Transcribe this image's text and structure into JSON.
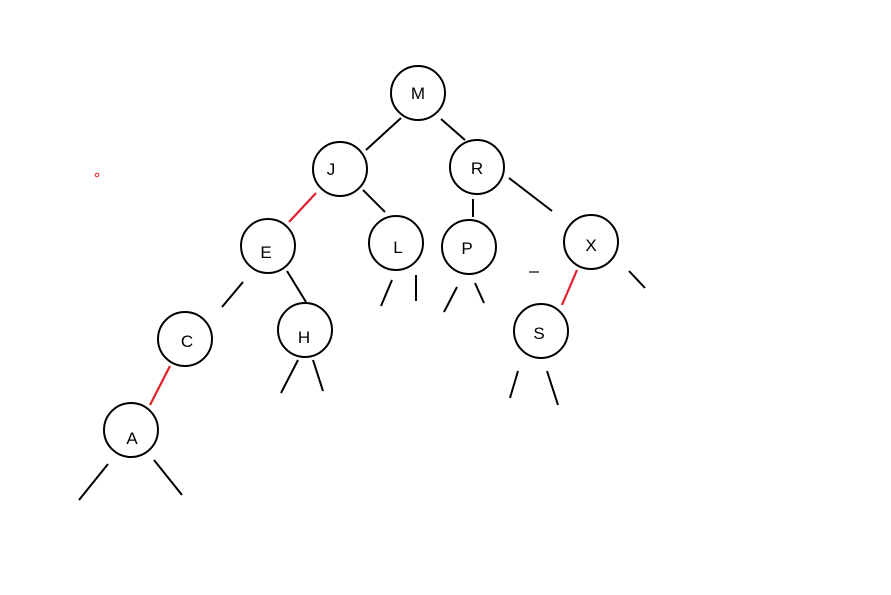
{
  "colors": {
    "background": "#ffffff",
    "black_link": "#000000",
    "red_link": "#e0202a"
  },
  "tree": {
    "nodes": [
      {
        "id": "M",
        "label": "M"
      },
      {
        "id": "J",
        "label": "J"
      },
      {
        "id": "R",
        "label": "R"
      },
      {
        "id": "E",
        "label": "E"
      },
      {
        "id": "L",
        "label": "L"
      },
      {
        "id": "P",
        "label": "P"
      },
      {
        "id": "X",
        "label": "X"
      },
      {
        "id": "C",
        "label": "C"
      },
      {
        "id": "H",
        "label": "H"
      },
      {
        "id": "S",
        "label": "S"
      },
      {
        "id": "A",
        "label": "A"
      }
    ],
    "links": [
      {
        "from": "M",
        "to": "J",
        "color": "black"
      },
      {
        "from": "M",
        "to": "R",
        "color": "black"
      },
      {
        "from": "J",
        "to": "E",
        "color": "red"
      },
      {
        "from": "J",
        "to": "L",
        "color": "black"
      },
      {
        "from": "R",
        "to": "P",
        "color": "black"
      },
      {
        "from": "R",
        "to": "X",
        "color": "black"
      },
      {
        "from": "E",
        "to": "C",
        "color": "black"
      },
      {
        "from": "E",
        "to": "H",
        "color": "black"
      },
      {
        "from": "C",
        "to": "A",
        "color": "red"
      },
      {
        "from": "X",
        "to": "S",
        "color": "red"
      }
    ]
  }
}
